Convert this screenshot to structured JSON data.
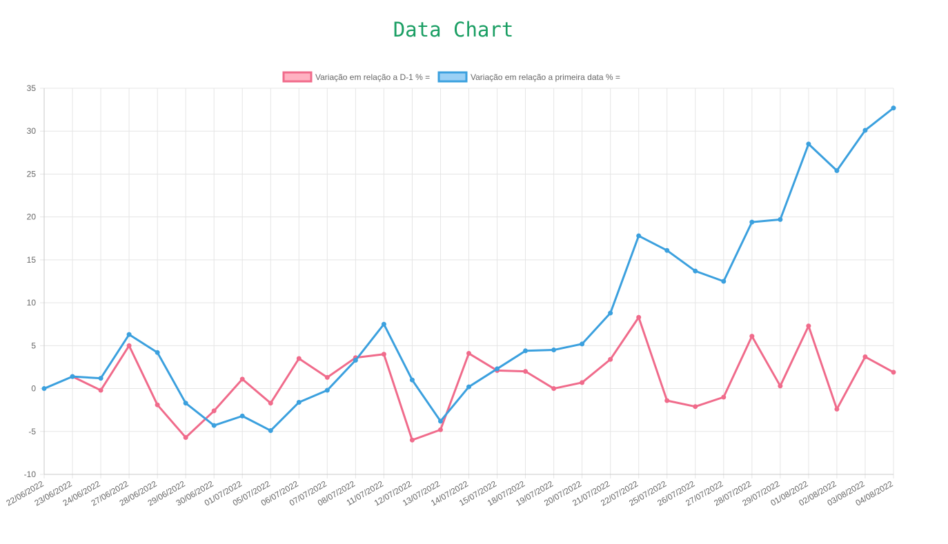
{
  "page_title": "Data Chart",
  "chart_data": {
    "type": "line",
    "title": "Data Chart",
    "xlabel": "",
    "ylabel": "",
    "ylim": [
      -10,
      35
    ],
    "ytick_step": 5,
    "grid": true,
    "legend_position": "top-center",
    "categories": [
      "22/06/2022",
      "23/06/2022",
      "24/06/2022",
      "27/06/2022",
      "28/06/2022",
      "29/06/2022",
      "30/06/2022",
      "01/07/2022",
      "05/07/2022",
      "06/07/2022",
      "07/07/2022",
      "08/07/2022",
      "11/07/2022",
      "12/07/2022",
      "13/07/2022",
      "14/07/2022",
      "15/07/2022",
      "18/07/2022",
      "19/07/2022",
      "20/07/2022",
      "21/07/2022",
      "22/07/2022",
      "25/07/2022",
      "26/07/2022",
      "27/07/2022",
      "28/07/2022",
      "29/07/2022",
      "01/08/2022",
      "02/08/2022",
      "03/08/2022",
      "04/08/2022"
    ],
    "series": [
      {
        "name": "Variação em relação a D-1 % =",
        "color": "#f06b8b",
        "fill": "#ffb1c1",
        "values": [
          null,
          1.4,
          -0.2,
          5.0,
          -1.9,
          -5.7,
          -2.6,
          1.1,
          -1.7,
          3.5,
          1.3,
          3.6,
          4.0,
          -6.0,
          -4.8,
          4.1,
          2.1,
          2.0,
          0.0,
          0.7,
          3.4,
          8.3,
          -1.4,
          -2.1,
          -1.0,
          6.1,
          0.3,
          7.3,
          -2.4,
          3.7,
          1.9
        ]
      },
      {
        "name": "Variação em relação a primeira data % =",
        "color": "#3ba0de",
        "fill": "#9ad0f5",
        "values": [
          0.0,
          1.4,
          1.2,
          6.3,
          4.2,
          -1.7,
          -4.3,
          -3.2,
          -4.9,
          -1.6,
          -0.2,
          3.3,
          7.5,
          1.0,
          -3.8,
          0.2,
          2.3,
          4.4,
          4.5,
          5.2,
          8.8,
          17.8,
          16.1,
          13.7,
          12.5,
          19.4,
          19.7,
          28.5,
          25.4,
          30.1,
          32.7
        ]
      }
    ]
  }
}
